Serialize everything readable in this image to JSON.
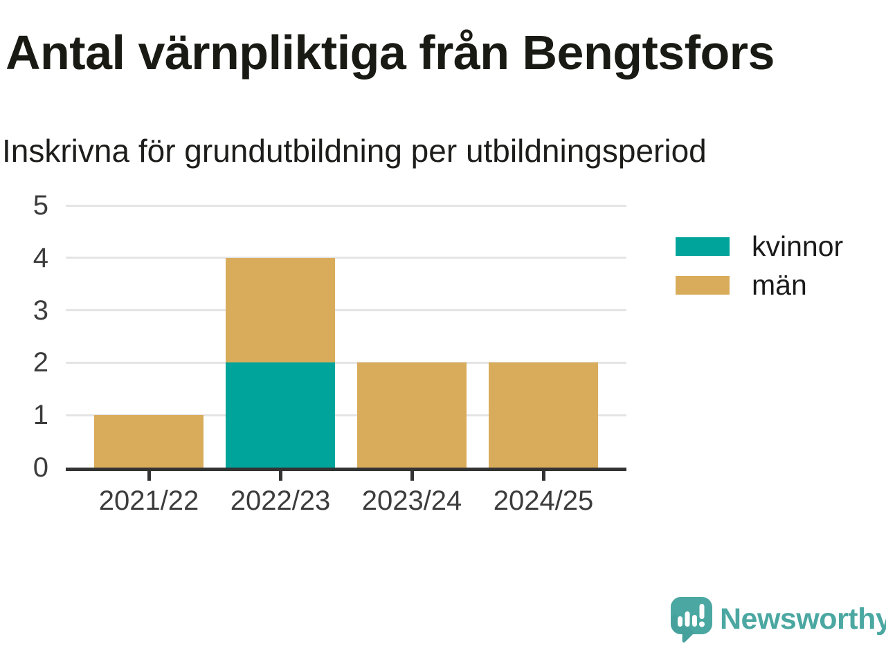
{
  "title": "Antal värnpliktiga från Bengtsfors",
  "subtitle": "Inskrivna för grundutbildning per utbildningsperiod",
  "chart_data": {
    "type": "bar",
    "stacked": true,
    "title": "Antal värnpliktiga från Bengtsfors",
    "subtitle": "Inskrivna för grundutbildning per utbildningsperiod",
    "categories": [
      "2021/22",
      "2022/23",
      "2023/24",
      "2024/25"
    ],
    "series": [
      {
        "name": "kvinnor",
        "color": "#00A49A",
        "values": [
          0,
          2,
          0,
          0
        ]
      },
      {
        "name": "män",
        "color": "#D9AC5B",
        "values": [
          1,
          2,
          2,
          2
        ]
      }
    ],
    "xlabel": "",
    "ylabel": "",
    "ylim": [
      0,
      5
    ],
    "yticks": [
      0,
      1,
      2,
      3,
      4,
      5
    ],
    "grid": "horizontal",
    "legend_position": "right"
  },
  "legend": {
    "items": [
      {
        "label": "kvinnor",
        "color": "#00A49A"
      },
      {
        "label": "män",
        "color": "#D9AC5B"
      }
    ]
  },
  "colors": {
    "kvinnor": "#00A49A",
    "man": "#D9AC5B",
    "gridline": "#E4E4E4",
    "axis": "#333333",
    "tick_label": "#3C3C3C",
    "text": "#1A1A1A",
    "brand_teal": "#4BA7A1"
  },
  "branding": {
    "wordmark": "Newsworthy",
    "icon": "newsworthy-speech-bubble-chart-icon"
  }
}
